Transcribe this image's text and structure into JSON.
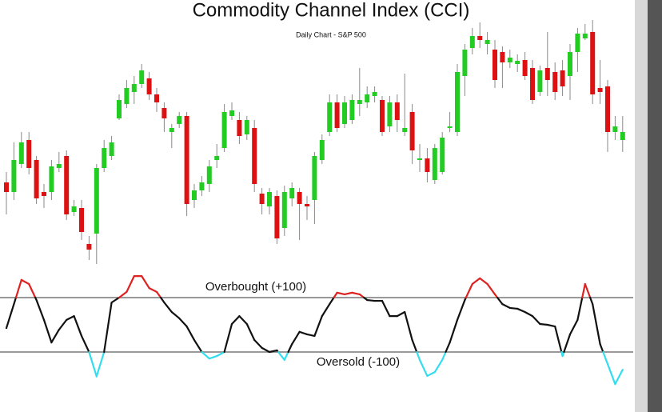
{
  "chart_data": [
    {
      "type": "candlestick",
      "title": "Commodity Channel Index (CCI)",
      "subtitle": "Daily Chart - S&P 500",
      "up_color": "#22cc22",
      "down_color": "#dd1111",
      "wick_color": "#888888",
      "ylim": [
        0,
        320
      ],
      "values": [
        [
          112,
          125,
          72,
          100
        ],
        [
          100,
          162,
          90,
          140
        ],
        [
          135,
          175,
          130,
          162
        ],
        [
          165,
          175,
          122,
          130
        ],
        [
          140,
          145,
          85,
          92
        ],
        [
          100,
          110,
          80,
          95
        ],
        [
          100,
          140,
          90,
          132
        ],
        [
          130,
          150,
          125,
          135
        ],
        [
          145,
          152,
          65,
          72
        ],
        [
          75,
          90,
          70,
          82
        ],
        [
          80,
          90,
          40,
          50
        ],
        [
          35,
          45,
          15,
          28
        ],
        [
          48,
          135,
          10,
          130
        ],
        [
          130,
          165,
          125,
          155
        ],
        [
          145,
          170,
          140,
          162
        ],
        [
          192,
          222,
          190,
          215
        ],
        [
          210,
          240,
          205,
          230
        ],
        [
          225,
          245,
          210,
          235
        ],
        [
          235,
          260,
          230,
          252
        ],
        [
          242,
          250,
          215,
          222
        ],
        [
          222,
          230,
          200,
          212
        ],
        [
          205,
          212,
          175,
          192
        ],
        [
          175,
          185,
          155,
          180
        ],
        [
          185,
          200,
          180,
          195
        ],
        [
          195,
          200,
          70,
          85
        ],
        [
          90,
          110,
          80,
          102
        ],
        [
          102,
          120,
          95,
          112
        ],
        [
          110,
          140,
          100,
          132
        ],
        [
          140,
          160,
          130,
          145
        ],
        [
          155,
          210,
          150,
          200
        ],
        [
          195,
          212,
          190,
          202
        ],
        [
          190,
          200,
          160,
          170
        ],
        [
          172,
          195,
          165,
          190
        ],
        [
          180,
          190,
          100,
          110
        ],
        [
          98,
          105,
          72,
          85
        ],
        [
          82,
          105,
          72,
          100
        ],
        [
          95,
          102,
          35,
          42
        ],
        [
          55,
          108,
          45,
          100
        ],
        [
          92,
          112,
          82,
          105
        ],
        [
          100,
          105,
          40,
          85
        ],
        [
          85,
          95,
          65,
          82
        ],
        [
          90,
          150,
          60,
          145
        ],
        [
          140,
          172,
          135,
          165
        ],
        [
          175,
          222,
          170,
          212
        ],
        [
          212,
          222,
          175,
          180
        ],
        [
          185,
          220,
          180,
          212
        ],
        [
          190,
          222,
          185,
          215
        ],
        [
          210,
          255,
          195,
          215
        ],
        [
          212,
          232,
          205,
          222
        ],
        [
          220,
          232,
          212,
          225
        ],
        [
          215,
          220,
          170,
          175
        ],
        [
          182,
          220,
          175,
          212
        ],
        [
          212,
          222,
          175,
          190
        ],
        [
          175,
          248,
          170,
          180
        ],
        [
          200,
          210,
          135,
          152
        ],
        [
          140,
          160,
          125,
          142
        ],
        [
          142,
          155,
          112,
          125
        ],
        [
          115,
          160,
          110,
          155
        ],
        [
          125,
          175,
          122,
          168
        ],
        [
          180,
          200,
          175,
          182
        ],
        [
          175,
          260,
          170,
          250
        ],
        [
          245,
          285,
          220,
          278
        ],
        [
          280,
          305,
          272,
          295
        ],
        [
          295,
          312,
          280,
          290
        ],
        [
          285,
          300,
          272,
          290
        ],
        [
          278,
          290,
          230,
          240
        ],
        [
          275,
          282,
          230,
          262
        ],
        [
          262,
          278,
          255,
          268
        ],
        [
          260,
          272,
          250,
          264
        ],
        [
          265,
          275,
          240,
          245
        ],
        [
          255,
          265,
          210,
          215
        ],
        [
          225,
          258,
          220,
          252
        ],
        [
          255,
          300,
          220,
          240
        ],
        [
          250,
          262,
          215,
          225
        ],
        [
          252,
          265,
          220,
          232
        ],
        [
          245,
          285,
          215,
          275
        ],
        [
          275,
          305,
          250,
          298
        ],
        [
          292,
          310,
          290,
          298
        ],
        [
          300,
          315,
          210,
          222
        ],
        [
          230,
          265,
          210,
          225
        ],
        [
          232,
          240,
          150,
          175
        ],
        [
          175,
          195,
          165,
          182
        ],
        [
          165,
          195,
          150,
          175
        ]
      ]
    },
    {
      "type": "line",
      "color": "#111111",
      "overbought_color": "#dd2222",
      "oversold_color": "#33ddee",
      "level_color": "#999999",
      "ylim": [
        -250,
        200
      ],
      "levels": [
        {
          "value": 100,
          "label": "Overbought (+100)"
        },
        {
          "value": -100,
          "label": "Oversold (-100)"
        }
      ],
      "values": [
        -12,
        76,
        165,
        150,
        91,
        18,
        -65,
        -18,
        18,
        32,
        -41,
        -100,
        -190,
        -100,
        82,
        100,
        121,
        179,
        179,
        135,
        121,
        82,
        47,
        24,
        -6,
        -56,
        -100,
        -124,
        -115,
        -100,
        3,
        32,
        3,
        -56,
        -85,
        -100,
        -94,
        -129,
        -71,
        -26,
        -35,
        -41,
        32,
        76,
        118,
        112,
        118,
        112,
        91,
        88,
        88,
        32,
        32,
        47,
        -56,
        -129,
        -188,
        -174,
        -129,
        -65,
        18,
        91,
        150,
        171,
        150,
        112,
        76,
        62,
        59,
        47,
        32,
        3,
        0,
        -6,
        -115,
        -35,
        18,
        150,
        76,
        -71,
        -144,
        -218,
        -165
      ]
    }
  ]
}
